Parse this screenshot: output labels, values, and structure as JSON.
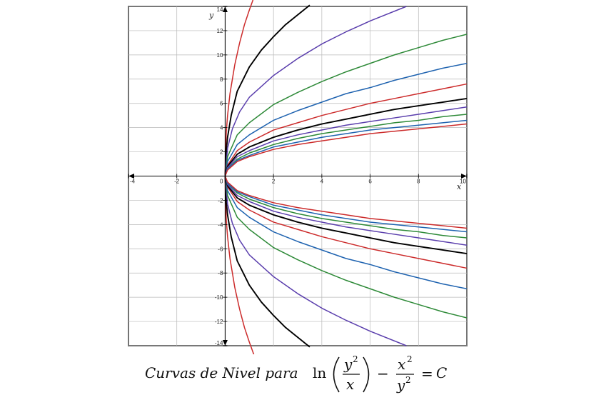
{
  "chart_data": {
    "type": "line",
    "title": "",
    "xlabel": "x",
    "ylabel": "y",
    "xlim": [
      -4,
      10
    ],
    "ylim": [
      -14,
      14
    ],
    "grid": true,
    "x_ticks": [
      -4,
      -2,
      0,
      2,
      4,
      6,
      8,
      10
    ],
    "y_ticks": [
      -14,
      -12,
      -10,
      -8,
      -6,
      -4,
      -2,
      0,
      2,
      4,
      6,
      8,
      10,
      12,
      14
    ],
    "x_tick_labels": [
      "-4",
      "-2",
      "0",
      "2",
      "4",
      "6",
      "8",
      "10"
    ],
    "y_tick_labels": [
      "-14",
      "-12",
      "-10",
      "-8",
      "-6",
      "-4",
      "-2",
      "0",
      "2",
      "4",
      "6",
      "8",
      "10",
      "12",
      "14"
    ],
    "series": [
      {
        "color": "#cc2b2b",
        "k": 0.6,
        "x": [
          0,
          0.01,
          0.05,
          0.1,
          0.2,
          0.4,
          0.6,
          0.8,
          1.0,
          1.2,
          1.4
        ],
        "y": [
          0,
          1.9,
          3.7,
          5.0,
          6.8,
          9.2,
          11.0,
          12.5,
          13.7,
          14.8,
          15.8
        ]
      },
      {
        "color": "#000000",
        "k": 1.0,
        "x": [
          0,
          0.05,
          0.1,
          0.25,
          0.5,
          1.0,
          1.5,
          2.0,
          2.5,
          3.0,
          3.5
        ],
        "y": [
          0,
          2.2,
          3.2,
          5.0,
          7.0,
          9.0,
          10.4,
          11.5,
          12.5,
          13.3,
          14.1
        ]
      },
      {
        "color": "#5b3fad",
        "k": 1.5,
        "x": [
          0,
          0.1,
          0.3,
          0.6,
          1.0,
          2.0,
          3.0,
          4.0,
          5.0,
          6.0,
          7.5
        ],
        "y": [
          0,
          2.3,
          3.9,
          5.3,
          6.5,
          8.3,
          9.7,
          10.9,
          11.9,
          12.8,
          14.0
        ]
      },
      {
        "color": "#2e8a38",
        "k": 2.0,
        "x": [
          0,
          0.1,
          0.5,
          1.0,
          2.0,
          3.0,
          4.0,
          5.0,
          6.0,
          7.0,
          8.0,
          9.0,
          10.0
        ],
        "y": [
          0,
          1.6,
          3.4,
          4.4,
          5.9,
          6.9,
          7.8,
          8.6,
          9.3,
          10.0,
          10.6,
          11.2,
          11.7
        ]
      },
      {
        "color": "#1f63b0",
        "k": 2.5,
        "x": [
          0,
          0.1,
          0.5,
          1.0,
          2.0,
          3.0,
          4.0,
          5.0,
          6.0,
          7.0,
          8.0,
          9.0,
          10.0
        ],
        "y": [
          0,
          1.2,
          2.6,
          3.4,
          4.6,
          5.4,
          6.1,
          6.8,
          7.3,
          7.9,
          8.4,
          8.9,
          9.3
        ]
      },
      {
        "color": "#cc2b2b",
        "k": 3.0,
        "x": [
          0,
          0.1,
          0.5,
          1.0,
          2.0,
          3.0,
          4.0,
          5.0,
          6.0,
          7.0,
          8.0,
          9.0,
          10.0
        ],
        "y": [
          0,
          0.9,
          2.1,
          2.8,
          3.8,
          4.4,
          5.0,
          5.5,
          6.0,
          6.4,
          6.8,
          7.2,
          7.6
        ]
      },
      {
        "color": "#000000",
        "k": 3.5,
        "x": [
          0,
          0.1,
          0.5,
          1.0,
          2.0,
          3.0,
          4.0,
          5.0,
          6.0,
          7.0,
          8.0,
          9.0,
          10.0
        ],
        "y": [
          0,
          0.8,
          1.8,
          2.4,
          3.2,
          3.8,
          4.3,
          4.7,
          5.1,
          5.5,
          5.8,
          6.1,
          6.4
        ]
      },
      {
        "color": "#5b3fad",
        "k": 4.0,
        "x": [
          0,
          0.1,
          0.5,
          1.0,
          2.0,
          3.0,
          4.0,
          5.0,
          6.0,
          7.0,
          8.0,
          9.0,
          10.0
        ],
        "y": [
          0,
          0.7,
          1.6,
          2.1,
          2.9,
          3.4,
          3.8,
          4.2,
          4.5,
          4.8,
          5.1,
          5.4,
          5.7
        ]
      },
      {
        "color": "#2e8a38",
        "k": 4.5,
        "x": [
          0,
          0.1,
          0.5,
          1.0,
          2.0,
          3.0,
          4.0,
          5.0,
          6.0,
          7.0,
          8.0,
          9.0,
          10.0
        ],
        "y": [
          0,
          0.6,
          1.4,
          1.9,
          2.6,
          3.1,
          3.5,
          3.8,
          4.1,
          4.4,
          4.6,
          4.9,
          5.1
        ]
      },
      {
        "color": "#1f63b0",
        "k": 5.0,
        "x": [
          0,
          0.1,
          0.5,
          1.0,
          2.0,
          3.0,
          4.0,
          5.0,
          6.0,
          7.0,
          8.0,
          9.0,
          10.0
        ],
        "y": [
          0,
          0.6,
          1.3,
          1.7,
          2.4,
          2.8,
          3.2,
          3.5,
          3.8,
          4.0,
          4.2,
          4.4,
          4.6
        ]
      },
      {
        "color": "#cc2b2b",
        "k": 5.5,
        "x": [
          0,
          0.1,
          0.5,
          1.0,
          2.0,
          3.0,
          4.0,
          5.0,
          6.0,
          7.0,
          8.0,
          9.0,
          10.0
        ],
        "y": [
          0,
          0.5,
          1.2,
          1.6,
          2.2,
          2.6,
          2.9,
          3.2,
          3.5,
          3.7,
          3.9,
          4.1,
          4.3
        ]
      }
    ],
    "symmetric_about_x_axis": true
  },
  "caption": {
    "text": "Curvas de Nivel para",
    "eq_ln": "ln",
    "eq_y": "y",
    "eq_x": "x",
    "eq_sup2": "2",
    "eq_minus": "−",
    "eq_eq": "=",
    "eq_C": "C"
  }
}
